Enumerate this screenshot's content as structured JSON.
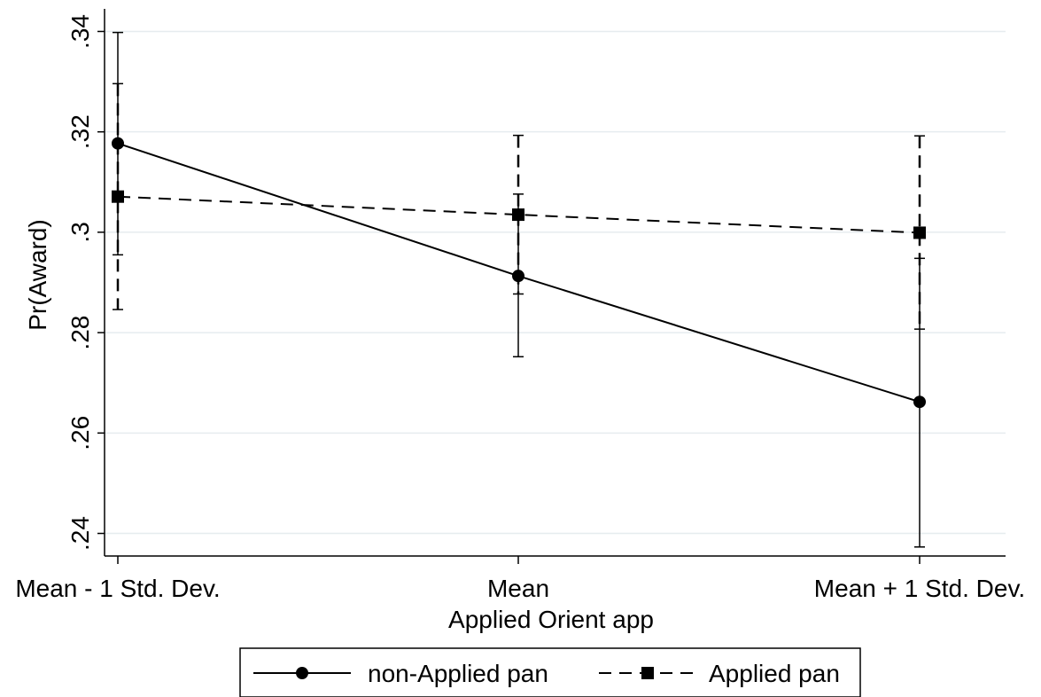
{
  "chart_data": {
    "type": "line",
    "title": "",
    "xlabel": "Applied Orient app",
    "ylabel": "Pr(Award)",
    "categories": [
      "Mean - 1 Std. Dev.",
      "Mean",
      "Mean + 1 Std. Dev."
    ],
    "yticks": [
      0.24,
      0.26,
      0.28,
      0.3,
      0.32,
      0.34
    ],
    "ytick_labels": [
      ".24",
      ".26",
      ".28",
      ".3",
      ".32",
      ".34"
    ],
    "ylim": [
      0.2355,
      0.3445
    ],
    "grid": true,
    "legend_position": "bottom",
    "series": [
      {
        "name": "non-Applied pan",
        "line_style": "solid",
        "marker": "circle",
        "color": "#000000",
        "values": [
          0.3177,
          0.2913,
          0.2662
        ],
        "ci_lower": [
          0.2955,
          0.2752,
          0.2373
        ],
        "ci_upper": [
          0.3398,
          0.3076,
          0.2948
        ]
      },
      {
        "name": "Applied pan",
        "line_style": "dashed",
        "marker": "square",
        "color": "#000000",
        "values": [
          0.3071,
          0.3035,
          0.2999
        ],
        "ci_lower": [
          0.2846,
          0.2877,
          0.2807
        ],
        "ci_upper": [
          0.3296,
          0.3193,
          0.3192
        ]
      }
    ]
  }
}
